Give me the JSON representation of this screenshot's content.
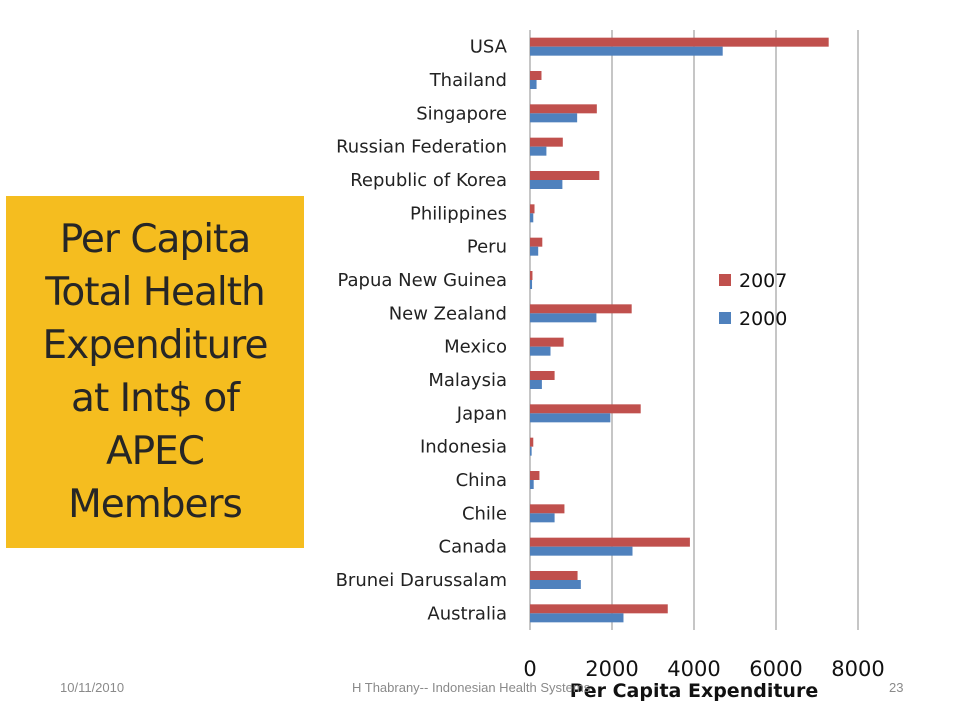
{
  "slide": {
    "title_lines": [
      "Per Capita",
      "Total Health",
      "Expenditure",
      "at Int$ of",
      "APEC",
      "Members"
    ],
    "title_bg": "#f5bd1f",
    "footer": {
      "date": "10/11/2010",
      "center": "H Thabrany-- Indonesian Health Systems",
      "page": "23"
    }
  },
  "chart_data": {
    "type": "bar",
    "orientation": "horizontal",
    "title": "",
    "xlabel": "Per Capita Expenditure",
    "ylabel": "",
    "xlim": [
      0,
      8000
    ],
    "xticks": [
      0,
      2000,
      4000,
      6000,
      8000
    ],
    "grid": true,
    "legend_position": "right",
    "categories": [
      "USA",
      "Thailand",
      "Singapore",
      "Russian Federation",
      "Republic of Korea",
      "Philippines",
      "Peru",
      "Papua New Guinea",
      "New Zealand",
      "Mexico",
      "Malaysia",
      "Japan",
      "Indonesia",
      "China",
      "Chile",
      "Canada",
      "Brunei Darussalam",
      "Australia"
    ],
    "series": [
      {
        "name": "2007",
        "color": "#c0504d",
        "values": [
          7285,
          280,
          1630,
          800,
          1690,
          110,
          300,
          60,
          2480,
          820,
          600,
          2700,
          80,
          230,
          840,
          3900,
          1160,
          3360
        ]
      },
      {
        "name": "2000",
        "color": "#4f81bd",
        "values": [
          4700,
          160,
          1150,
          400,
          790,
          80,
          200,
          50,
          1620,
          500,
          290,
          1960,
          40,
          90,
          600,
          2500,
          1240,
          2280
        ]
      }
    ]
  }
}
